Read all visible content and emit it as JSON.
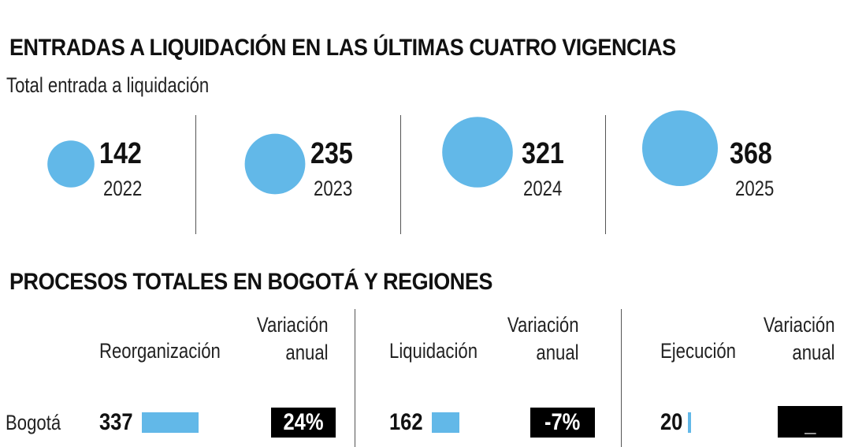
{
  "colors": {
    "accent": "#62b8e8",
    "box": "#000000",
    "text": "#111111"
  },
  "title": "ENTRADAS A LIQUIDACIÓN EN LAS ÚLTIMAS CUATRO VIGENCIAS",
  "subtitle": "Total entrada a liquidación",
  "chart_data": [
    {
      "type": "bubble",
      "title": "ENTRADAS A LIQUIDACIÓN EN LAS ÚLTIMAS CUATRO VIGENCIAS",
      "subtitle": "Total entrada a liquidación",
      "categories": [
        "2022",
        "2023",
        "2024",
        "2025"
      ],
      "values": [
        142,
        235,
        321,
        368
      ],
      "value_labels": [
        "142",
        "235",
        "321",
        "368"
      ]
    },
    {
      "type": "table",
      "title": "PROCESOS TOTALES EN BOGOTÁ Y REGIONES",
      "groups": [
        {
          "name": "Reorganización",
          "variation_header": [
            "Variación",
            "anual"
          ]
        },
        {
          "name": "Liquidación",
          "variation_header": [
            "Variación",
            "anual"
          ]
        },
        {
          "name": "Ejecución",
          "variation_header": [
            "Variación",
            "anual"
          ]
        }
      ],
      "rows": [
        {
          "label": "Bogotá",
          "values": [
            337,
            162,
            20
          ],
          "value_labels": [
            "337",
            "162",
            "20"
          ],
          "variations": [
            "24%",
            "-7%",
            "_"
          ]
        }
      ]
    }
  ]
}
